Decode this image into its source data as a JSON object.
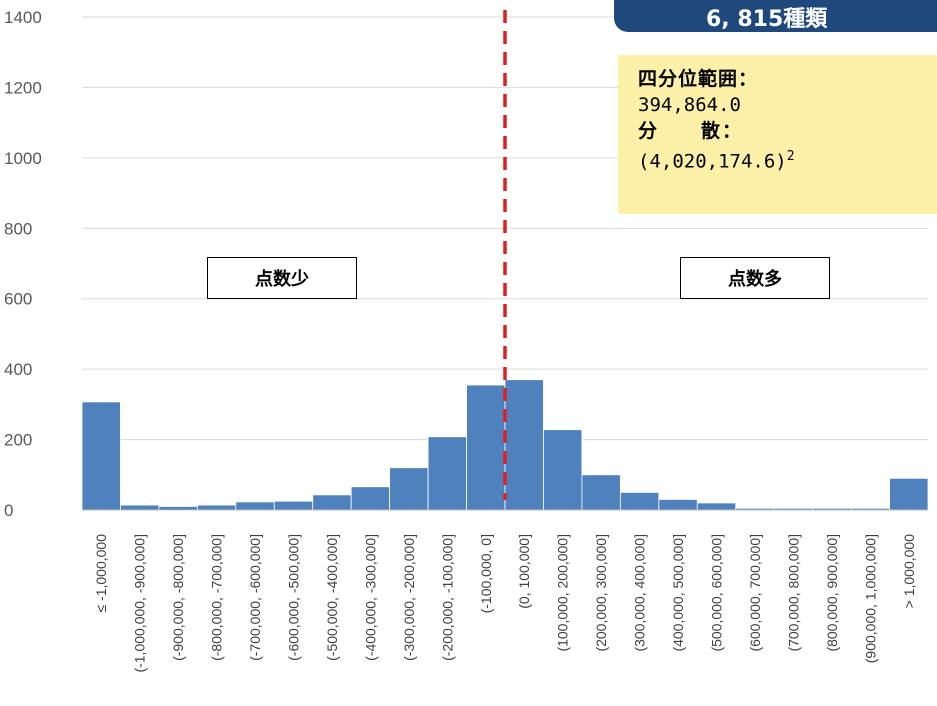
{
  "chart_data": {
    "type": "bar",
    "title": "",
    "xlabel": "",
    "ylabel": "",
    "ylim": [
      0,
      1400
    ],
    "yticks": [
      0,
      200,
      400,
      600,
      800,
      1000,
      1200,
      1400
    ],
    "grid": true,
    "legend": "none",
    "categories": [
      "≤ -1,000,000",
      "(-1,000,000, -900,000]",
      "(-900,000, -800,000]",
      "(-800,000, -700,000]",
      "(-700,000, -600,000]",
      "(-600,000, -500,000]",
      "(-500,000, -400,000]",
      "(-400,000, -300,000]",
      "(-300,000, -200,000]",
      "(-200,000, -100,000]",
      "(-100,000, 0]",
      "(0, 100,000]",
      "(100,000, 200,000]",
      "(200,000, 300,000]",
      "(300,000, 400,000]",
      "(400,000, 500,000]",
      "(500,000, 600,000]",
      "(600,000, 700,000]",
      "(700,000, 800,000]",
      "(800,000, 900,000]",
      "(900,000, 1,000,000]",
      "> 1,000,000"
    ],
    "values": [
      307,
      14,
      10,
      14,
      23,
      25,
      43,
      66,
      120,
      208,
      355,
      370,
      228,
      100,
      50,
      30,
      20,
      5,
      5,
      5,
      5,
      90
    ],
    "reference_line": {
      "value": 0,
      "style": "dashed",
      "color": "#e02020"
    },
    "colors": {
      "bar": "#4f81bd",
      "bar_edge": "#ffffff",
      "grid": "#d9d9d9",
      "axis": "#bfbfbf"
    }
  },
  "banner": {
    "text": "6, 815種類"
  },
  "stats": {
    "iqr_label": "四分位範囲：",
    "iqr_value": "394,864.0",
    "variance_label": "分　　散：",
    "variance_value": "(4,020,174.6)",
    "variance_exp": "2"
  },
  "annotations": {
    "low_label": "点数少",
    "high_label": "点数多"
  }
}
